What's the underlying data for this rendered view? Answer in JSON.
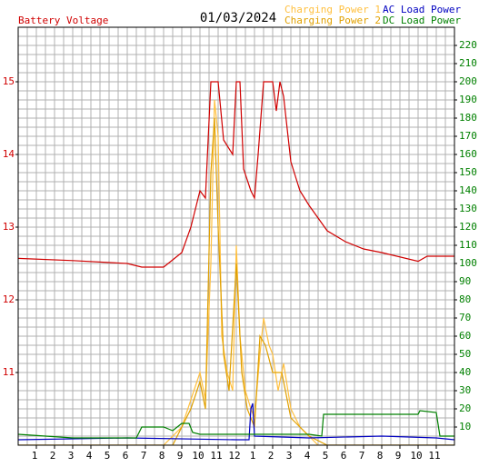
{
  "chart_data": {
    "type": "line",
    "title": "01/03/2024",
    "xlim": [
      0,
      24
    ],
    "xticks": [
      1,
      2,
      3,
      4,
      5,
      6,
      7,
      8,
      9,
      10,
      11,
      12,
      {
        "value": 13,
        "label": "1"
      },
      {
        "value": 14,
        "label": "2"
      },
      {
        "value": 15,
        "label": "3"
      },
      {
        "value": 16,
        "label": "4"
      },
      {
        "value": 17,
        "label": "5"
      },
      {
        "value": 18,
        "label": "6"
      },
      {
        "value": 19,
        "label": "7"
      },
      {
        "value": 20,
        "label": "8"
      },
      {
        "value": 21,
        "label": "9"
      },
      {
        "value": 22,
        "label": "10"
      },
      {
        "value": 23,
        "label": "11"
      }
    ],
    "ylim": [
      10,
      15.75
    ],
    "yticks": [
      11,
      12,
      13,
      14,
      15
    ],
    "y2lim": [
      0,
      230
    ],
    "y2ticks": [
      10,
      20,
      30,
      40,
      50,
      60,
      70,
      80,
      90,
      100,
      110,
      120,
      130,
      140,
      150,
      160,
      170,
      180,
      190,
      200,
      210,
      220
    ],
    "grid": true,
    "series": [
      {
        "name": "Battery Voltage",
        "color": "#d00000",
        "x": [
          0,
          3,
          6,
          6.8,
          8,
          8.5,
          9,
          9.5,
          10,
          10.3,
          10.6,
          11,
          11.3,
          11.8,
          12,
          12.2,
          12.4,
          12.8,
          13,
          13.2,
          13.5,
          14,
          14.2,
          14.4,
          14.6,
          15,
          15.5,
          16,
          17,
          18,
          19,
          20,
          22,
          22.5,
          24
        ],
        "values": [
          12.57,
          12.54,
          12.5,
          12.45,
          12.45,
          12.55,
          12.65,
          13.0,
          13.5,
          13.4,
          15.0,
          15.0,
          14.2,
          14.0,
          15.0,
          15.0,
          13.8,
          13.5,
          13.4,
          14.0,
          15.0,
          15.0,
          14.6,
          15.0,
          14.8,
          13.9,
          13.5,
          13.3,
          12.95,
          12.8,
          12.7,
          12.65,
          12.53,
          12.6,
          12.6
        ]
      },
      {
        "name": "Charging Power 1",
        "color": "#ffc040",
        "axis": "y2",
        "x": [
          0,
          8,
          9,
          9.5,
          10,
          10.3,
          10.6,
          10.8,
          11,
          11.2,
          11.5,
          11.8,
          12,
          12.2,
          12.5,
          12.8,
          13,
          13.3,
          13.5,
          13.8,
          14,
          14.3,
          14.6,
          15,
          15.5,
          16,
          16.5,
          24
        ],
        "values": [
          0,
          0,
          10,
          25,
          40,
          25,
          100,
          190,
          170,
          60,
          40,
          30,
          110,
          60,
          30,
          20,
          15,
          50,
          70,
          55,
          50,
          30,
          45,
          20,
          10,
          5,
          0,
          0
        ]
      },
      {
        "name": "Charging Power 2",
        "color": "#e0a000",
        "axis": "y2",
        "x": [
          0,
          8.5,
          9.5,
          10,
          10.3,
          10.6,
          10.8,
          11,
          11.3,
          11.6,
          12,
          12.3,
          12.6,
          13,
          13.3,
          13.6,
          14,
          14.5,
          15,
          16,
          17,
          24
        ],
        "values": [
          0,
          0,
          20,
          35,
          20,
          150,
          180,
          120,
          50,
          30,
          100,
          40,
          20,
          10,
          60,
          55,
          40,
          40,
          15,
          5,
          0,
          0
        ]
      },
      {
        "name": "AC Load Power",
        "color": "#0000c0",
        "axis": "y2",
        "x": [
          0,
          6,
          12,
          12.7,
          12.8,
          12.9,
          13,
          16,
          20,
          23,
          24
        ],
        "values": [
          3,
          4,
          3,
          3,
          20,
          23,
          5,
          4,
          5,
          4,
          3
        ]
      },
      {
        "name": "DC Load Power",
        "color": "#008000",
        "axis": "y2",
        "x": [
          0,
          3,
          6.5,
          6.8,
          8,
          8.5,
          9,
          9.4,
          9.6,
          10,
          16,
          16.7,
          16.8,
          22,
          22.1,
          23,
          23.2,
          24
        ],
        "values": [
          6,
          4,
          4,
          10,
          10,
          8,
          12,
          12,
          7,
          6,
          6,
          5,
          17,
          17,
          19,
          18,
          5,
          5
        ]
      }
    ]
  }
}
